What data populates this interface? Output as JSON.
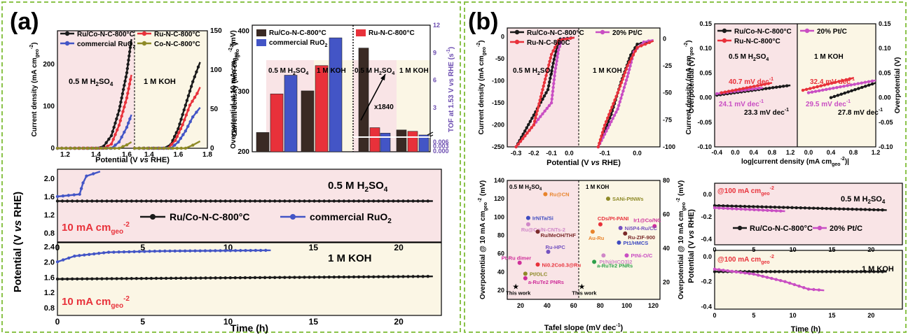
{
  "colors": {
    "black": "#1a1a1a",
    "red": "#e8313a",
    "blue": "#4355c6",
    "olive": "#8e8a27",
    "magenta": "#c94ec3",
    "dark_bar": "#3a2a24",
    "purple": "#6c4db0",
    "panel_pink": "#f9e4e6",
    "panel_cream": "#fbf6e5",
    "border_green": "#8bc34a"
  },
  "panels": {
    "a": {
      "label": "(a)"
    },
    "b": {
      "label": "(b)"
    },
    "lsv_a": {
      "xlabel": "Potential (V vs RHE)",
      "ylabel_left": "Current density (mA cm",
      "ylabel_left_sub": "geo",
      "ylabel_left_sup": "-2",
      "ylabel_left_end": ")",
      "ylabel_right": "Current density (mA cm",
      "ylabel_right_sub": "geo",
      "ylabel_right_sup": "-2",
      "ylabel_right_end": ")",
      "zone1": "0.5 M H",
      "zone1_sub": "2",
      "zone1_end": "SO",
      "zone1_sub2": "4",
      "zone2": "1 M KOH"
    },
    "bars_a": {
      "ylabel_left": "Overpotential at 10 mA cm",
      "ylabel_left_sub": "geo",
      "ylabel_left_sup": "-2",
      "ylabel_left_end": " (mV)",
      "ylabel_right": "TOF at 1.53 V vs RHE (s",
      "ylabel_right_sup": "-1",
      "ylabel_right_end": ")",
      "zone1": "0.5 M H",
      "zone1_sub": "2",
      "zone1_end": "SO",
      "zone1_sub2": "4",
      "zone2": "1 M KOH",
      "zone3": "0.5 M H",
      "zone4": "1 M KOH",
      "annotation": "x1840"
    },
    "stab_a": {
      "ylabel": "Potential (V vs RHE)",
      "xlabel": "Time (h)",
      "top_label": "0.5 M H",
      "top_label_sub": "2",
      "top_label_end": "SO",
      "top_label_sub2": "4",
      "bottom_label": "1 M KOH",
      "current": "10 mA cm",
      "current_sub": "geo",
      "current_sup": "-2"
    },
    "lsv_b": {
      "xlabel": "Potential (V vs RHE)",
      "ylabel": "Current density (mA cm",
      "ylabel_sub": "geo",
      "ylabel_sup": "-2",
      "ylabel_end": ")",
      "zone1": "0.5 M H",
      "zone1_sub": "2",
      "zone1_end": "SO",
      "zone1_sub2": "4",
      "zone2": "1 M KOH"
    },
    "tafel_b": {
      "xlabel": "log|current density (mA cm",
      "xlabel_sub": "geo",
      "xlabel_sup": "-2",
      "xlabel_end": ")|",
      "ylabel": "Overpotential (V)",
      "zone1": "0.5 M H",
      "zone1_sub": "2",
      "zone1_end": "SO",
      "zone1_sub2": "4",
      "zone2": "1 M KOH",
      "t1": "40.7 mV dec",
      "t2": "24.1 mV dec",
      "t3": "23.3 mV dec",
      "t4": "32.4 mV dec",
      "t5": "29.5 mV dec",
      "t6": "27.8 mV dec",
      "sup": "-1"
    },
    "cmp_b": {
      "xlabel": "Tafel slope (mV dec",
      "xlabel_sup": "-1",
      "xlabel_end": ")",
      "ylabel_left": "Overpotential @ 10 mA cm",
      "ylabel_sub": "geo",
      "ylabel_sup": "-2",
      "ylabel_end": " (mV)",
      "ylabel_right": "Overpotential @ 10 mA cm",
      "zone1": "0.5 M H",
      "zone1_sub": "2",
      "zone1_end": "SO",
      "zone1_sub2": "4",
      "zone2": "1 M KOH",
      "this_work": "This work"
    },
    "stab_b": {
      "ylabel": "Potential (V vs RHE)",
      "xlabel": "Time (h)",
      "top_label": "0.5 M H",
      "top_label_sub": "2",
      "top_label_end": "SO",
      "top_label_sub2": "4",
      "bottom_label": "1 M KOH",
      "current": "@100 mA cm",
      "current_sub": "geo",
      "current_sup": "-2"
    }
  },
  "legends": {
    "lsv_a": [
      "Ru/Co-N-C-800°C",
      "Ru-N-C-800°C",
      "commercial RuO",
      "Co-N-C-800°C"
    ],
    "lsv_a_sub": "2",
    "bars_a": [
      "Ru/Co-N-C-800°C",
      "Ru-N-C-800°C",
      "commercial RuO"
    ],
    "stab_a": [
      "Ru/Co-N-C-800°C",
      "commercial RuO"
    ],
    "lsv_b": [
      "Ru/Co-N-C-800°C",
      "20% Pt/C",
      "Ru-N-C-800C"
    ],
    "tafel_b": [
      "Ru/Co-N-C-800°C",
      "20% Pt/C",
      "Ru-N-C-800°C"
    ],
    "stab_b": [
      "Ru/Co-N-C-800°C",
      "20% Pt/C"
    ]
  },
  "chart_data": [
    {
      "id": "lsv_a",
      "type": "line",
      "xlabel": "Potential (V vs RHE)",
      "xlim": [
        1.15,
        1.8
      ],
      "ticks_x_left": [
        "1.2",
        "1.4",
        "1.6"
      ],
      "ticks_x_right": [
        "1.4",
        "1.6",
        "1.8"
      ],
      "yticks_left": [
        "0",
        "100",
        "200"
      ],
      "yticks_right": [
        "0",
        "50",
        "100",
        "150"
      ],
      "series": [
        {
          "name": "Ru/Co-N-C-800°C",
          "zone": "acid",
          "x": [
            1.15,
            1.4,
            1.45,
            1.5,
            1.55,
            1.6,
            1.63
          ],
          "y": [
            0,
            0,
            5,
            30,
            90,
            180,
            260
          ]
        },
        {
          "name": "Ru-N-C-800°C",
          "zone": "acid",
          "x": [
            1.15,
            1.45,
            1.5,
            1.55,
            1.6,
            1.63
          ],
          "y": [
            0,
            0,
            10,
            55,
            120,
            175
          ]
        },
        {
          "name": "commercial RuO2",
          "zone": "acid",
          "x": [
            1.15,
            1.5,
            1.55,
            1.6,
            1.63
          ],
          "y": [
            0,
            0,
            15,
            50,
            80
          ]
        },
        {
          "name": "Co-N-C-800°C",
          "zone": "acid",
          "x": [
            1.15,
            1.55,
            1.6,
            1.63
          ],
          "y": [
            0,
            0,
            8,
            15
          ]
        },
        {
          "name": "Ru/Co-N-C-800°C",
          "zone": "base",
          "x": [
            1.3,
            1.5,
            1.55,
            1.6,
            1.65,
            1.7,
            1.75
          ],
          "y": [
            0,
            0,
            5,
            25,
            55,
            85,
            110
          ]
        },
        {
          "name": "Ru-N-C-800°C",
          "zone": "base",
          "x": [
            1.3,
            1.53,
            1.58,
            1.63,
            1.68,
            1.73,
            1.75
          ],
          "y": [
            0,
            0,
            10,
            30,
            55,
            70,
            78
          ]
        },
        {
          "name": "commercial RuO2",
          "zone": "base",
          "x": [
            1.3,
            1.55,
            1.6,
            1.65,
            1.7,
            1.75
          ],
          "y": [
            0,
            0,
            8,
            22,
            40,
            52
          ]
        },
        {
          "name": "Co-N-C-800°C",
          "zone": "base",
          "x": [
            1.3,
            1.65,
            1.7,
            1.75
          ],
          "y": [
            0,
            0,
            4,
            9
          ]
        }
      ]
    },
    {
      "id": "bars_a",
      "type": "bar",
      "ylim_left": [
        200,
        400
      ],
      "yticks_left": [
        "200",
        "300",
        "400"
      ],
      "ylim_right": [
        0,
        12
      ],
      "yticks_right": [
        "0.000",
        "0.003",
        "0.006",
        "3",
        "6",
        "9",
        "12"
      ],
      "groups": [
        {
          "zone": "0.5 M H2SO4",
          "values": [
            232,
            296,
            327
          ]
        },
        {
          "zone": "1 M KOH",
          "values": [
            301,
            343,
            389
          ]
        },
        {
          "zone": "0.5 M H2SO4 TOF",
          "values": [
            9.5,
            0.8,
            0.2
          ]
        },
        {
          "zone": "1 M KOH TOF",
          "values": [
            0.55,
            0.4,
            0.0
          ]
        }
      ]
    },
    {
      "id": "stab_a",
      "type": "line",
      "xlim": [
        0,
        22
      ],
      "xticks": [
        "0",
        "5",
        "10",
        "15",
        "20"
      ],
      "yticks_top": [
        "0.8",
        "1.2",
        "1.6",
        "2.0"
      ],
      "yticks_bottom": [
        "0.8",
        "1.2",
        "1.6",
        "2.0",
        "2.4"
      ],
      "series": [
        {
          "name": "Ru/Co-N-C-800°C",
          "panel": "top",
          "x": [
            0,
            22
          ],
          "y": [
            1.5,
            1.5
          ]
        },
        {
          "name": "commercial RuO2",
          "panel": "top",
          "x": [
            0,
            1.3,
            1.5,
            1.7,
            2.5
          ],
          "y": [
            1.6,
            1.65,
            1.9,
            2.05,
            2.15
          ]
        },
        {
          "name": "Ru/Co-N-C-800°C",
          "panel": "bottom",
          "x": [
            0,
            22
          ],
          "y": [
            1.55,
            1.62
          ]
        },
        {
          "name": "commercial RuO2",
          "panel": "bottom",
          "x": [
            0,
            1,
            3,
            6,
            12.5
          ],
          "y": [
            2.0,
            2.15,
            2.25,
            2.28,
            2.3
          ]
        }
      ]
    },
    {
      "id": "lsv_b",
      "type": "line",
      "xticks_left": [
        "-0.3",
        "-0.2",
        "-0.1",
        "0.0"
      ],
      "xticks_right": [
        "-0.1",
        "0.0"
      ],
      "yticks_left": [
        "0",
        "-50",
        "-100",
        "-150",
        "-200",
        "-250"
      ],
      "yticks_right": [
        "0",
        "-25",
        "-50",
        "-75",
        "-100"
      ],
      "series": [
        {
          "name": "Ru/Co-N-C-800°C",
          "zone": "acid",
          "x": [
            -0.3,
            -0.12,
            -0.09,
            -0.07,
            -0.05,
            0.03
          ],
          "y": [
            -250,
            -120,
            -60,
            -25,
            -5,
            -2
          ]
        },
        {
          "name": "20% Pt/C",
          "zone": "acid",
          "x": [
            -0.3,
            -0.1,
            -0.08,
            -0.06,
            -0.04,
            0.03
          ],
          "y": [
            -250,
            -150,
            -80,
            -30,
            -6,
            -2
          ]
        },
        {
          "name": "Ru-N-C-800C",
          "zone": "acid",
          "x": [
            -0.3,
            -0.2,
            -0.15,
            -0.1,
            -0.06,
            0.03
          ],
          "y": [
            -250,
            -200,
            -120,
            -40,
            -8,
            -2
          ]
        },
        {
          "name": "Ru/Co-N-C-800°C",
          "zone": "base",
          "x": [
            -0.12,
            -0.08,
            -0.05,
            -0.02,
            0.0,
            0.05
          ],
          "y": [
            -100,
            -70,
            -40,
            -15,
            -5,
            -2
          ]
        },
        {
          "name": "20% Pt/C",
          "zone": "base",
          "x": [
            -0.12,
            -0.06,
            -0.03,
            -0.01,
            0.02,
            0.05
          ],
          "y": [
            -100,
            -65,
            -35,
            -12,
            -3,
            -1
          ]
        },
        {
          "name": "Ru-N-C-800C",
          "zone": "base",
          "x": [
            -0.12,
            -0.1,
            -0.06,
            -0.03,
            0.0,
            0.05
          ],
          "y": [
            -100,
            -80,
            -50,
            -25,
            -8,
            -2
          ]
        }
      ]
    },
    {
      "id": "tafel_b",
      "type": "line",
      "xticks_left": [
        "-0.4",
        "0.0",
        "0.4",
        "0.8",
        "1.2"
      ],
      "xticks_right": [
        "0.0",
        "0.4",
        "0.8",
        "1.2"
      ],
      "yticks": [
        "-0.10",
        "-0.05",
        "0.00",
        "0.05",
        "0.10",
        "0.15"
      ],
      "series": [
        {
          "name": "Ru/Co-N-C-800°C",
          "zone": "acid",
          "x": [
            -0.4,
            1.2
          ],
          "y": [
            0.005,
            0.025
          ]
        },
        {
          "name": "20% Pt/C",
          "zone": "acid",
          "x": [
            -0.4,
            0.6
          ],
          "y": [
            0.008,
            0.02
          ]
        },
        {
          "name": "Ru-N-C-800°C",
          "zone": "acid",
          "x": [
            -0.3,
            0.8
          ],
          "y": [
            0.01,
            0.03
          ]
        },
        {
          "name": "Ru/Co-N-C-800°C",
          "zone": "base",
          "x": [
            0.4,
            1.2
          ],
          "y": [
            0.0,
            0.03
          ]
        },
        {
          "name": "20% Pt/C",
          "zone": "base",
          "x": [
            0.0,
            1.2
          ],
          "y": [
            0.01,
            0.035
          ]
        },
        {
          "name": "Ru-N-C-800°C",
          "zone": "base",
          "x": [
            -0.1,
            0.8
          ],
          "y": [
            0.015,
            0.04
          ]
        }
      ]
    },
    {
      "id": "cmp_b",
      "type": "scatter",
      "xticks": [
        "20",
        "40",
        "60",
        "80",
        "100",
        "120"
      ],
      "yticks_left": [
        "20",
        "40",
        "60",
        "80",
        "100",
        "120",
        "140"
      ],
      "yticks_right": [
        "20",
        "40",
        "60",
        "80"
      ],
      "points": [
        {
          "label": "Ru@CN",
          "x": 55,
          "y": 125,
          "color": "#e8842c"
        },
        {
          "label": "IrNiTa/Si",
          "x": 37,
          "y": 99,
          "color": "#3e4bc0"
        },
        {
          "label": "Ru@Co/N-CNTs-2",
          "x": 37,
          "y": 92,
          "color": "#d087c8"
        },
        {
          "label": "Ru/MeOH/THF",
          "x": 47,
          "y": 84,
          "color": "#7a2a2a"
        },
        {
          "label": "Ru-HPC",
          "x": 58,
          "y": 62,
          "color": "#7452c0"
        },
        {
          "label": "Pt-Ru dimer",
          "x": 28,
          "y": 50,
          "color": "#cf2e9a"
        },
        {
          "label": "Ni0.2Co0.3@Ru",
          "x": 47,
          "y": 48,
          "color": "#e8313a"
        },
        {
          "label": "Pt/OLC",
          "x": 34,
          "y": 38,
          "color": "#8e8a27"
        },
        {
          "label": "a-RuTe2 PNRs",
          "x": 34,
          "y": 33,
          "color": "#cf2e9a"
        },
        {
          "label": "This work",
          "x": 24,
          "y": 24,
          "color": "#1a1a1a"
        },
        {
          "label": "SANi-PtNWs",
          "x": 58,
          "y": 120,
          "color": "#8e8a27"
        },
        {
          "label": "Ir1@Co/NC",
          "x": 118,
          "y": 90,
          "color": "#cf2e9a"
        },
        {
          "label": "CDs/Pt-PANI",
          "x": 48,
          "y": 92,
          "color": "#e8313a"
        },
        {
          "label": "Ni5P4-Ru/CC",
          "x": 74,
          "y": 88,
          "color": "#7452c0"
        },
        {
          "label": "Ru-ZIF-900",
          "x": 80,
          "y": 82,
          "color": "#7a2a2a"
        },
        {
          "label": "Au-Ru",
          "x": 38,
          "y": 84,
          "color": "#e8842c"
        },
        {
          "label": "Pt1/HMCS",
          "x": 72,
          "y": 72,
          "color": "#3e4bc0"
        },
        {
          "label": "Pt/Ni(HCO3)2",
          "x": 52,
          "y": 58,
          "color": "#d087c8"
        },
        {
          "label": "PtNi-O/C",
          "x": 82,
          "y": 58,
          "color": "#c94ec3"
        },
        {
          "label": "a-RuTe2 PNRs",
          "x": 40,
          "y": 51,
          "color": "#2ea04a"
        },
        {
          "label": "This work",
          "x": 24,
          "y": 24,
          "color": "#1a1a1a"
        }
      ]
    },
    {
      "id": "stab_b",
      "type": "line",
      "xlim": [
        0,
        22
      ],
      "xticks": [
        "0",
        "5",
        "10",
        "15",
        "20"
      ],
      "yticks_top": [
        "-0.4",
        "-0.2",
        "0.0"
      ],
      "yticks_bottom": [
        "-0.4",
        "-0.2",
        "0.0"
      ],
      "series": [
        {
          "name": "Ru/Co-N-C-800°C",
          "panel": "top",
          "x": [
            0,
            22
          ],
          "y": [
            -0.1,
            -0.14
          ]
        },
        {
          "name": "20% Pt/C",
          "panel": "top",
          "x": [
            0,
            9
          ],
          "y": [
            -0.12,
            -0.15
          ]
        },
        {
          "name": "Ru/Co-N-C-800°C",
          "panel": "bottom",
          "x": [
            0,
            22
          ],
          "y": [
            -0.12,
            -0.12
          ]
        },
        {
          "name": "20% Pt/C",
          "panel": "bottom",
          "x": [
            0,
            5,
            9,
            12,
            14
          ],
          "y": [
            -0.1,
            -0.14,
            -0.2,
            -0.26,
            -0.27
          ]
        }
      ]
    }
  ]
}
